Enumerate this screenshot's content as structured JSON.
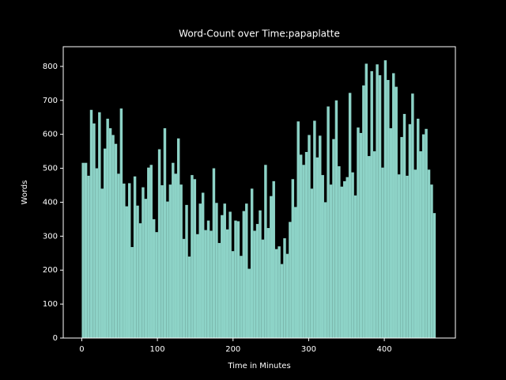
{
  "chart_data": {
    "type": "histogram",
    "title": "Word-Count over Time:papaplatte",
    "xlabel": "Time in Minutes",
    "ylabel": "Words",
    "color": "#8dd3c7",
    "bins": [
      0,
      3.6,
      7.2,
      10.8,
      14.4,
      18,
      21.6,
      25.2,
      28.8,
      32.4,
      36,
      39.6,
      43.2,
      46.8,
      50.4,
      54,
      57.6,
      61.2,
      64.8,
      68.4,
      72,
      75.6,
      79.2,
      82.8,
      86.4,
      90,
      93.6,
      97.2,
      100.8,
      104.4,
      108,
      111.6,
      115.2,
      118.8,
      122.4,
      126,
      129.6,
      133.2,
      136.8,
      140.4,
      144,
      147.6,
      151.2,
      154.8,
      158.4,
      162,
      165.6,
      169.2,
      172.8,
      176.4,
      180,
      183.6,
      187.2,
      190.8,
      194.4,
      198,
      201.6,
      205.2,
      208.8,
      212.4,
      216,
      219.6,
      223.2,
      226.8,
      230.4,
      234,
      237.6,
      241.2,
      244.8,
      248.4,
      252,
      255.6,
      259.2,
      262.8,
      266.4,
      270,
      273.6,
      277.2,
      280.8,
      284.4,
      288,
      291.6,
      295.2,
      298.8,
      302.4,
      306,
      309.6,
      313.2,
      316.8,
      320.4,
      324,
      327.6,
      331.2,
      334.8,
      338.4,
      342,
      345.6,
      349.2,
      352.8,
      356.4,
      360,
      363.6,
      367.2,
      370.8,
      374.4,
      378,
      381.6,
      385.2,
      388.8,
      392.4,
      396,
      399.6,
      403.2,
      406.8,
      410.4,
      414,
      417.6,
      421.2,
      424.8,
      428.4,
      432,
      435.6,
      439.2,
      442.8,
      446.4,
      450,
      453.6,
      457.2,
      460.8,
      464.4,
      468
    ],
    "counts": [
      516,
      516,
      478,
      672,
      632,
      500,
      665,
      440,
      558,
      646,
      618,
      598,
      572,
      484,
      676,
      455,
      388,
      456,
      268,
      476,
      390,
      338,
      444,
      410,
      502,
      510,
      350,
      312,
      556,
      450,
      618,
      402,
      452,
      516,
      484,
      588,
      452,
      292,
      392,
      240,
      480,
      468,
      306,
      396,
      428,
      318,
      346,
      316,
      500,
      398,
      280,
      362,
      396,
      320,
      372,
      256,
      346,
      344,
      242,
      374,
      396,
      204,
      440,
      316,
      336,
      376,
      290,
      510,
      324,
      418,
      462,
      262,
      270,
      218,
      294,
      248,
      342,
      468,
      386,
      638,
      540,
      510,
      548,
      598,
      440,
      640,
      532,
      596,
      480,
      400,
      682,
      452,
      586,
      700,
      506,
      446,
      462,
      474,
      722,
      488,
      420,
      620,
      604,
      744,
      808,
      536,
      786,
      550,
      806,
      774,
      502,
      818,
      760,
      618,
      780,
      740,
      482,
      592,
      660,
      478,
      630,
      720,
      496,
      646,
      550,
      600,
      616,
      496,
      452,
      368
    ],
    "xlim": [
      -24.5,
      494
    ],
    "ylim": [
      0,
      858
    ],
    "xticks": [
      0,
      100,
      200,
      300,
      400
    ],
    "yticks": [
      0,
      100,
      200,
      300,
      400,
      500,
      600,
      700,
      800
    ]
  }
}
